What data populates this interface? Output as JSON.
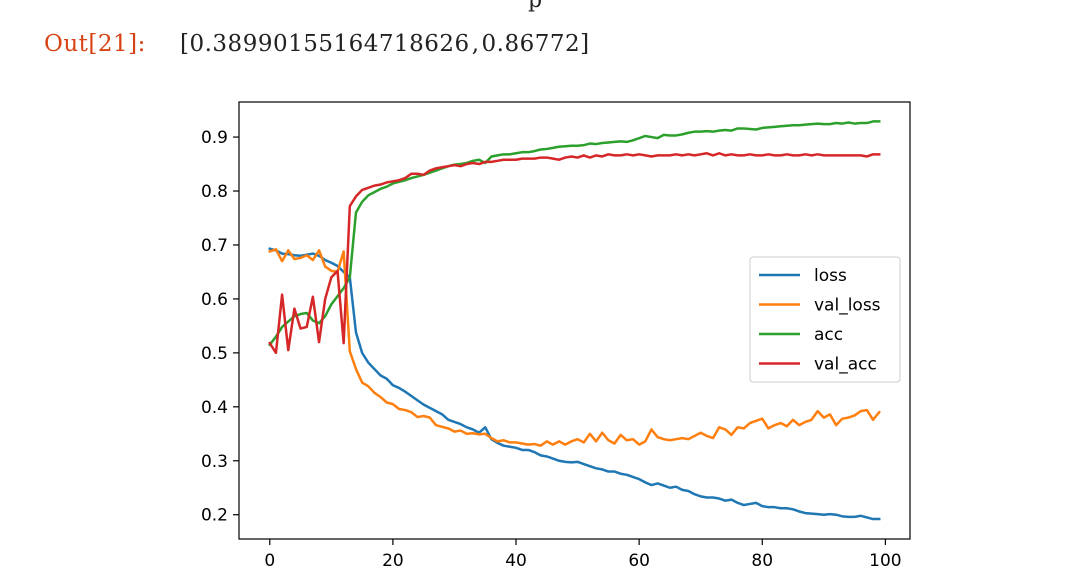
{
  "notebook": {
    "top_edge_glyph": "p",
    "output_prompt": "Out[21]:",
    "result_values": [
      "0.38990155164718626",
      "0.86772"
    ],
    "result_open": "[",
    "result_separator": ",",
    "result_close": "]"
  },
  "chart_data": {
    "type": "line",
    "title": "",
    "xlabel": "",
    "ylabel": "",
    "xlim": [
      -5,
      104
    ],
    "ylim": [
      0.155,
      0.965
    ],
    "x_ticks": [
      0,
      20,
      40,
      60,
      80,
      100
    ],
    "y_ticks": [
      0.2,
      0.3,
      0.4,
      0.5,
      0.6,
      0.7,
      0.8,
      0.9
    ],
    "grid": false,
    "legend": {
      "placement": "center-right",
      "entries": [
        "loss",
        "val_loss",
        "acc",
        "val_acc"
      ]
    },
    "x": [
      0,
      1,
      2,
      3,
      4,
      5,
      6,
      7,
      8,
      9,
      10,
      11,
      12,
      13,
      14,
      15,
      16,
      17,
      18,
      19,
      20,
      21,
      22,
      23,
      24,
      25,
      26,
      27,
      28,
      29,
      30,
      31,
      32,
      33,
      34,
      35,
      36,
      37,
      38,
      39,
      40,
      41,
      42,
      43,
      44,
      45,
      46,
      47,
      48,
      49,
      50,
      51,
      52,
      53,
      54,
      55,
      56,
      57,
      58,
      59,
      60,
      61,
      62,
      63,
      64,
      65,
      66,
      67,
      68,
      69,
      70,
      71,
      72,
      73,
      74,
      75,
      76,
      77,
      78,
      79,
      80,
      81,
      82,
      83,
      84,
      85,
      86,
      87,
      88,
      89,
      90,
      91,
      92,
      93,
      94,
      95,
      96,
      97,
      98,
      99
    ],
    "series": [
      {
        "name": "loss",
        "color": "#1f77b4",
        "values": [
          0.693,
          0.69,
          0.684,
          0.683,
          0.681,
          0.68,
          0.682,
          0.684,
          0.68,
          0.672,
          0.667,
          0.661,
          0.65,
          0.64,
          0.538,
          0.5,
          0.482,
          0.47,
          0.458,
          0.452,
          0.44,
          0.435,
          0.428,
          0.42,
          0.412,
          0.404,
          0.398,
          0.392,
          0.386,
          0.376,
          0.372,
          0.368,
          0.362,
          0.358,
          0.352,
          0.362,
          0.34,
          0.333,
          0.328,
          0.326,
          0.324,
          0.32,
          0.32,
          0.316,
          0.31,
          0.308,
          0.304,
          0.3,
          0.298,
          0.297,
          0.298,
          0.294,
          0.29,
          0.286,
          0.284,
          0.28,
          0.28,
          0.276,
          0.274,
          0.27,
          0.266,
          0.26,
          0.255,
          0.258,
          0.254,
          0.25,
          0.252,
          0.246,
          0.244,
          0.238,
          0.234,
          0.232,
          0.232,
          0.23,
          0.226,
          0.228,
          0.222,
          0.218,
          0.22,
          0.222,
          0.216,
          0.214,
          0.214,
          0.212,
          0.212,
          0.21,
          0.206,
          0.203,
          0.202,
          0.201,
          0.2,
          0.201,
          0.2,
          0.197,
          0.196,
          0.196,
          0.198,
          0.195,
          0.192,
          0.192
        ]
      },
      {
        "name": "val_loss",
        "color": "#ff7f0e",
        "values": [
          0.688,
          0.692,
          0.67,
          0.69,
          0.674,
          0.676,
          0.681,
          0.672,
          0.69,
          0.66,
          0.652,
          0.65,
          0.688,
          0.503,
          0.47,
          0.445,
          0.438,
          0.426,
          0.418,
          0.408,
          0.405,
          0.396,
          0.394,
          0.39,
          0.381,
          0.383,
          0.38,
          0.366,
          0.363,
          0.36,
          0.354,
          0.356,
          0.35,
          0.351,
          0.349,
          0.35,
          0.342,
          0.336,
          0.338,
          0.334,
          0.334,
          0.332,
          0.33,
          0.331,
          0.328,
          0.336,
          0.33,
          0.336,
          0.33,
          0.336,
          0.34,
          0.334,
          0.35,
          0.336,
          0.352,
          0.338,
          0.332,
          0.348,
          0.338,
          0.34,
          0.33,
          0.336,
          0.358,
          0.344,
          0.34,
          0.338,
          0.34,
          0.342,
          0.34,
          0.346,
          0.352,
          0.346,
          0.342,
          0.362,
          0.358,
          0.348,
          0.362,
          0.36,
          0.37,
          0.374,
          0.378,
          0.36,
          0.366,
          0.37,
          0.364,
          0.376,
          0.366,
          0.372,
          0.376,
          0.392,
          0.38,
          0.386,
          0.366,
          0.378,
          0.38,
          0.384,
          0.392,
          0.394,
          0.376,
          0.39
        ]
      },
      {
        "name": "acc",
        "color": "#2ca02c",
        "values": [
          0.515,
          0.53,
          0.548,
          0.558,
          0.568,
          0.572,
          0.574,
          0.56,
          0.555,
          0.568,
          0.59,
          0.605,
          0.62,
          0.64,
          0.76,
          0.78,
          0.792,
          0.798,
          0.804,
          0.808,
          0.814,
          0.817,
          0.82,
          0.824,
          0.827,
          0.83,
          0.834,
          0.838,
          0.842,
          0.846,
          0.849,
          0.85,
          0.852,
          0.856,
          0.858,
          0.852,
          0.864,
          0.866,
          0.868,
          0.868,
          0.87,
          0.872,
          0.872,
          0.874,
          0.877,
          0.878,
          0.88,
          0.882,
          0.883,
          0.884,
          0.884,
          0.885,
          0.888,
          0.887,
          0.889,
          0.89,
          0.891,
          0.892,
          0.891,
          0.894,
          0.898,
          0.902,
          0.9,
          0.898,
          0.904,
          0.903,
          0.903,
          0.905,
          0.908,
          0.91,
          0.91,
          0.911,
          0.91,
          0.912,
          0.913,
          0.912,
          0.916,
          0.916,
          0.915,
          0.914,
          0.917,
          0.918,
          0.919,
          0.92,
          0.921,
          0.922,
          0.922,
          0.923,
          0.924,
          0.925,
          0.924,
          0.924,
          0.926,
          0.925,
          0.927,
          0.925,
          0.926,
          0.926,
          0.929,
          0.929
        ]
      },
      {
        "name": "val_acc",
        "color": "#d62728",
        "values": [
          0.518,
          0.5,
          0.608,
          0.505,
          0.582,
          0.545,
          0.548,
          0.604,
          0.52,
          0.6,
          0.64,
          0.652,
          0.518,
          0.772,
          0.79,
          0.802,
          0.806,
          0.81,
          0.812,
          0.816,
          0.818,
          0.82,
          0.824,
          0.832,
          0.832,
          0.83,
          0.838,
          0.842,
          0.844,
          0.846,
          0.848,
          0.846,
          0.85,
          0.852,
          0.85,
          0.854,
          0.854,
          0.856,
          0.858,
          0.858,
          0.858,
          0.86,
          0.86,
          0.86,
          0.862,
          0.862,
          0.86,
          0.858,
          0.862,
          0.864,
          0.862,
          0.866,
          0.862,
          0.866,
          0.864,
          0.868,
          0.866,
          0.866,
          0.868,
          0.866,
          0.868,
          0.866,
          0.864,
          0.866,
          0.866,
          0.866,
          0.868,
          0.866,
          0.868,
          0.866,
          0.868,
          0.87,
          0.866,
          0.87,
          0.866,
          0.868,
          0.866,
          0.866,
          0.868,
          0.866,
          0.866,
          0.868,
          0.866,
          0.866,
          0.868,
          0.866,
          0.866,
          0.868,
          0.866,
          0.868,
          0.866,
          0.866,
          0.866,
          0.866,
          0.866,
          0.866,
          0.866,
          0.864,
          0.868,
          0.868
        ]
      }
    ]
  }
}
